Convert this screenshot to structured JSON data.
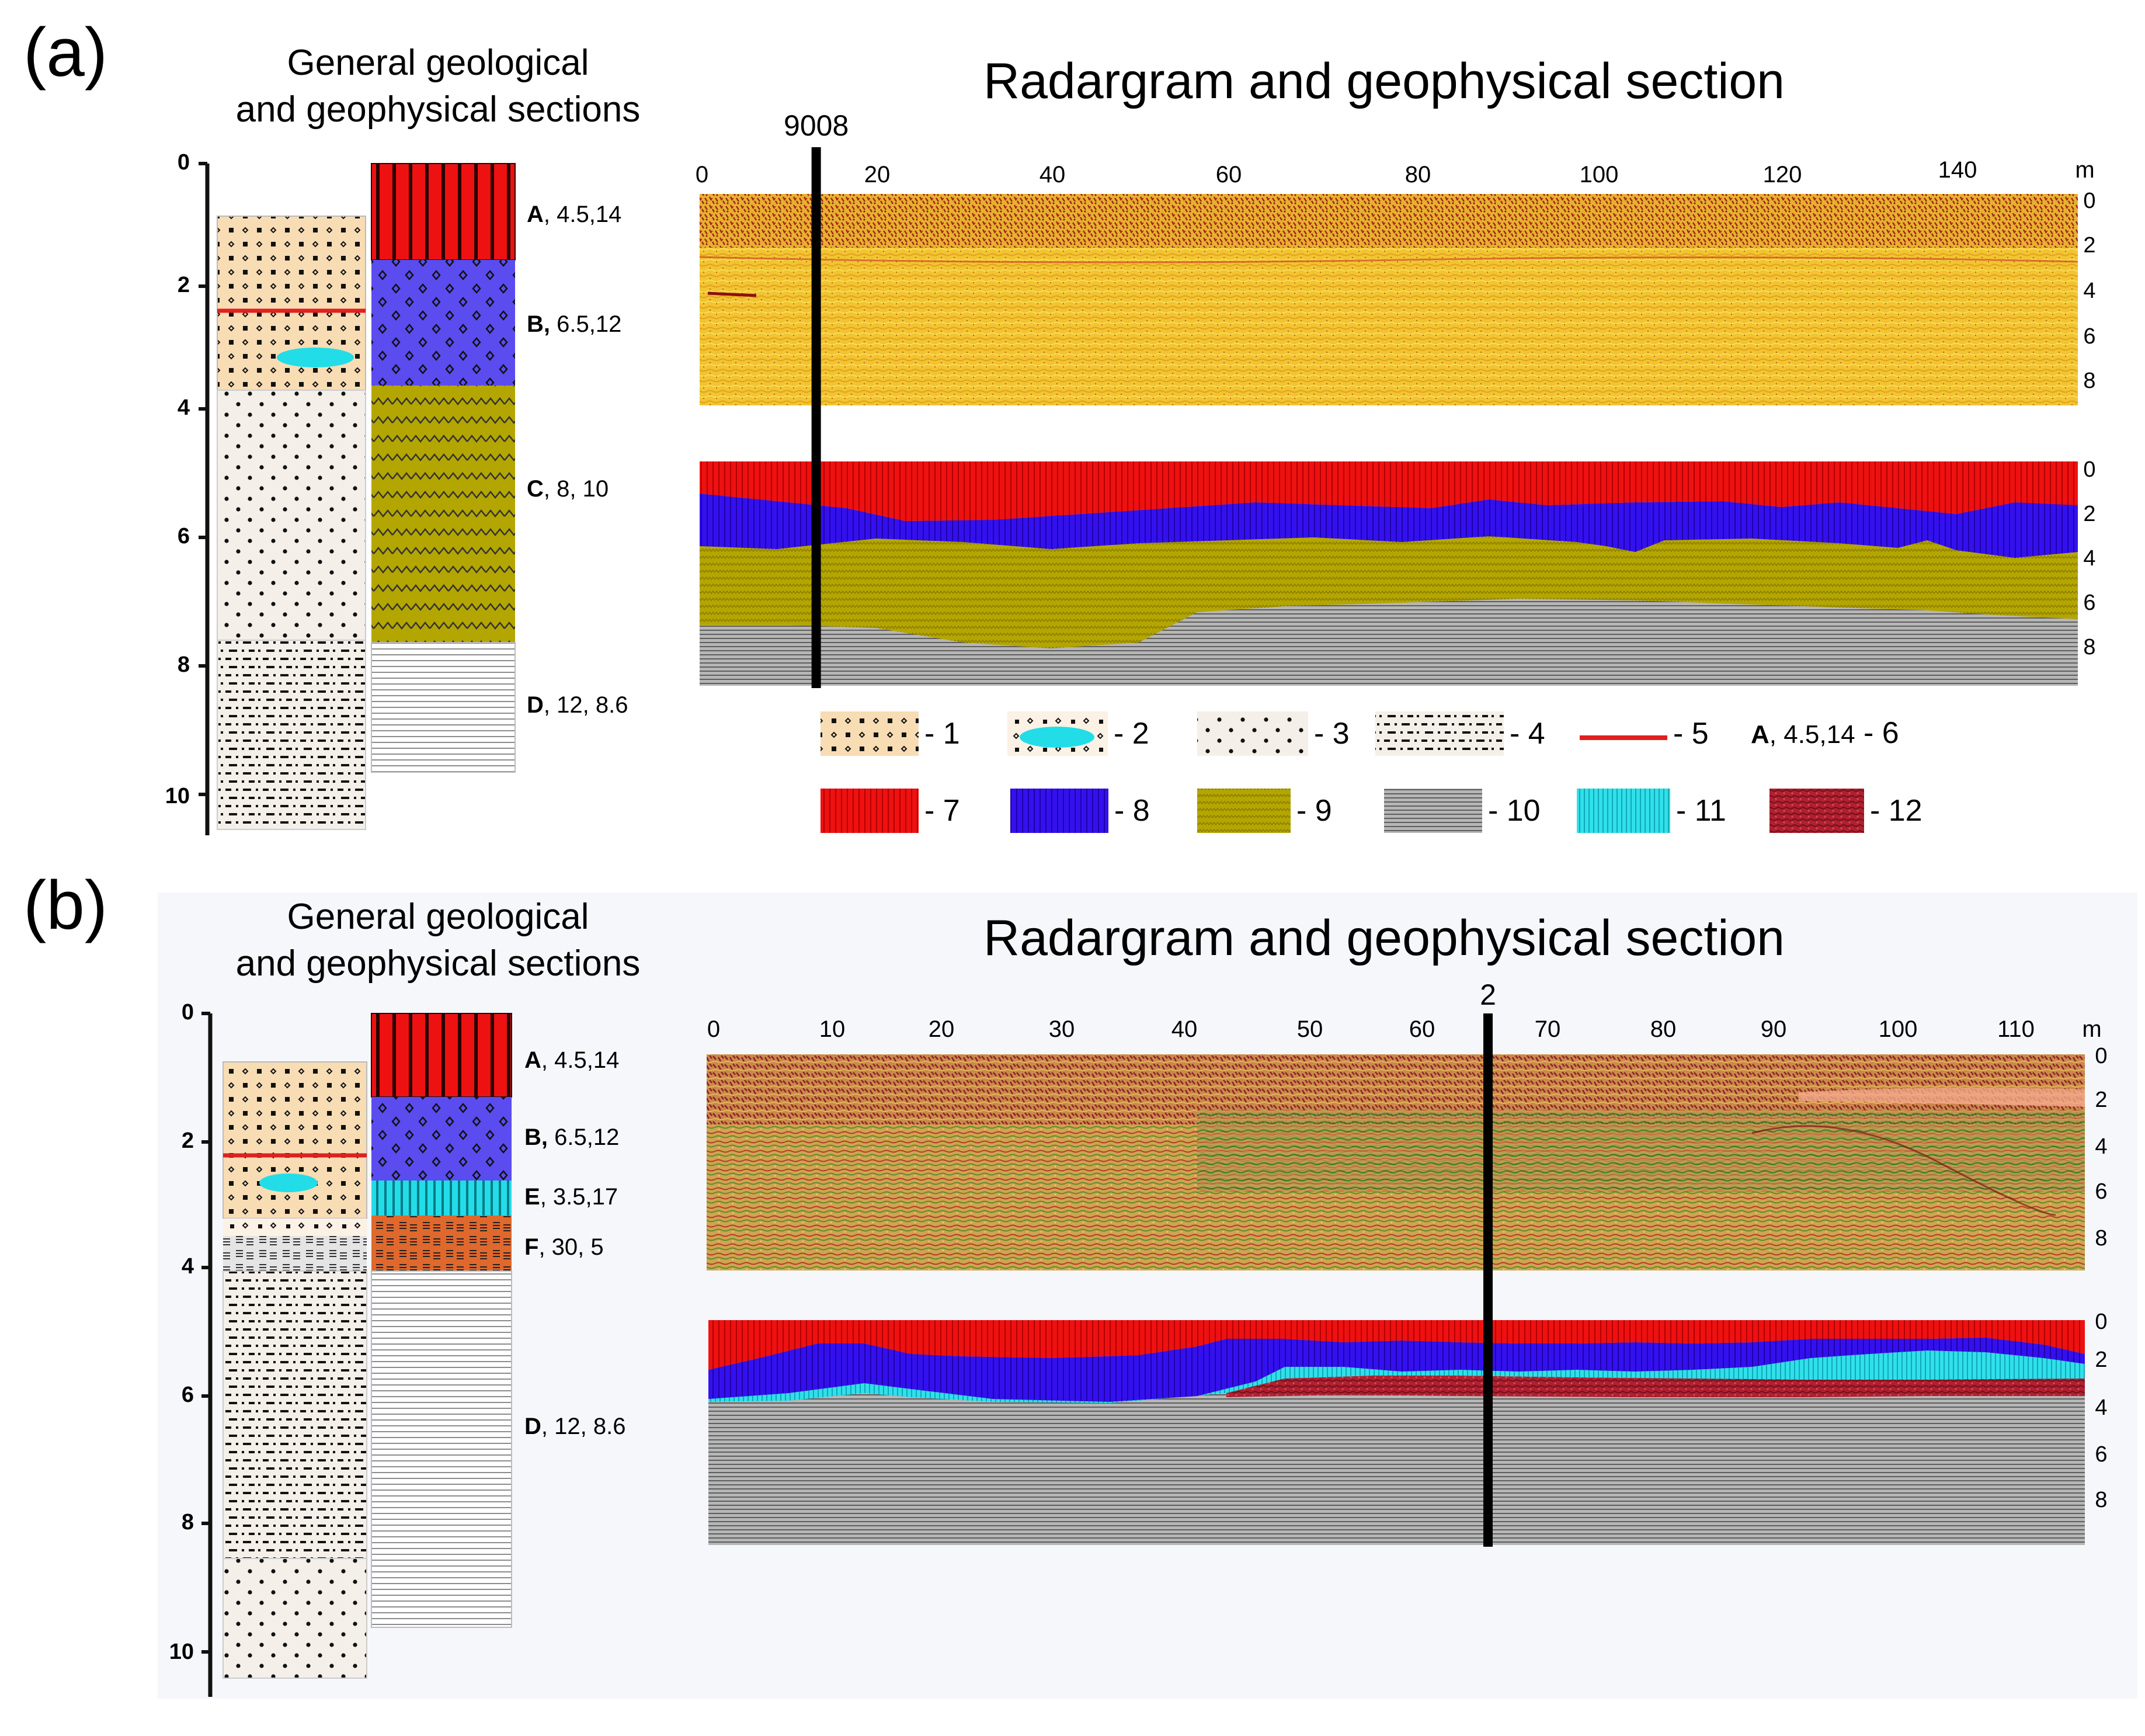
{
  "panels": [
    {
      "letter": "(a)",
      "column_title_line1": "General geological",
      "column_title_line2": "and geophysical sections",
      "section_title": "Radargram and geophysical section",
      "depth_ticks": [
        "0",
        "2",
        "4",
        "6",
        "8",
        "10"
      ],
      "layers": [
        {
          "code": "A",
          "values": ", 4.5,14"
        },
        {
          "code": "B,",
          "values": " 6.5,12"
        },
        {
          "code": "C",
          "values": ", 8, 10"
        },
        {
          "code": "D",
          "values": ", 12, 8.6"
        }
      ],
      "x_ticks": [
        "0",
        "20",
        "40",
        "60",
        "80",
        "100",
        "120",
        "140"
      ],
      "x_unit": "m",
      "right_depth_ticks": [
        "0",
        "2",
        "4",
        "6",
        "8"
      ],
      "marker_label": "9008",
      "marker_distance_m": 13
    },
    {
      "letter": "(b)",
      "column_title_line1": "General geological",
      "column_title_line2": "and geophysical sections",
      "section_title": "Radargram and geophysical section",
      "depth_ticks": [
        "0",
        "2",
        "4",
        "6",
        "8",
        "10"
      ],
      "layers": [
        {
          "code": "A",
          "values": ", 4.5,14"
        },
        {
          "code": "B,",
          "values": " 6.5,12"
        },
        {
          "code": "E",
          "values": ", 3.5,17"
        },
        {
          "code": "F",
          "values": ", 30, 5"
        },
        {
          "code": "D",
          "values": ", 12, 8.6"
        }
      ],
      "x_ticks": [
        "0",
        "10",
        "20",
        "30",
        "40",
        "50",
        "60",
        "70",
        "80",
        "90",
        "100",
        "110"
      ],
      "x_unit": "m",
      "right_depth_ticks": [
        "0",
        "2",
        "4",
        "6",
        "8"
      ],
      "marker_label": "2",
      "marker_distance_m": 65
    }
  ],
  "legend": [
    {
      "number": "- 1"
    },
    {
      "number": "- 2"
    },
    {
      "number": "- 3"
    },
    {
      "number": "- 4"
    },
    {
      "number": "- 5"
    },
    {
      "code": "A",
      "values": ", 4.5,14",
      "number": " - 6"
    },
    {
      "number": "- 7"
    },
    {
      "number": "- 8"
    },
    {
      "number": "- 9"
    },
    {
      "number": "- 10"
    },
    {
      "number": "- 11"
    },
    {
      "number": "- 12"
    }
  ],
  "colors": {
    "layer_a_red": "#ee1111",
    "layer_b_blue": "#3311ee",
    "layer_c_olive": "#b4a600",
    "layer_d_gray": "#a0a0a0",
    "layer_e_cyan": "#22dde8",
    "layer_f_orange": "#e0682c",
    "layer_12_darkred": "#b02030",
    "sandy_tan": "#f8dcb4",
    "red_line": "#e02020",
    "radar_yellow": "#f0c830",
    "radar_red": "#a81818"
  }
}
